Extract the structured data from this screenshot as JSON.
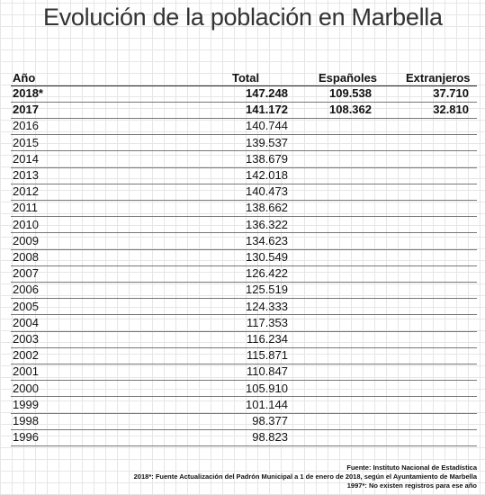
{
  "title": "Evolución de la población en Marbella",
  "table": {
    "header": [
      "Año",
      "Total",
      "Españoles",
      "Extranjeros"
    ],
    "rows": [
      [
        "2018*",
        "147.248",
        "109.538",
        "37.710"
      ],
      [
        "2017",
        "141.172",
        "108.362",
        "32.810"
      ],
      [
        "2016",
        "140.744"
      ],
      [
        "2015",
        "139.537"
      ],
      [
        "2014",
        "138.679"
      ],
      [
        "2013",
        "142.018"
      ],
      [
        "2012",
        "140.473"
      ],
      [
        "2011",
        "138.662"
      ],
      [
        "2010",
        "136.322"
      ],
      [
        "2009",
        "134.623"
      ],
      [
        "2008",
        "130.549"
      ],
      [
        "2007",
        "126.422"
      ],
      [
        "2006",
        "125.519"
      ],
      [
        "2005",
        "124.333"
      ],
      [
        "2004",
        "117.353"
      ],
      [
        "2003",
        "116.234"
      ],
      [
        "2002",
        "115.871"
      ],
      [
        "2001",
        "110.847"
      ],
      [
        "2000",
        "105.910"
      ],
      [
        "1999",
        "101.144"
      ],
      [
        "1998",
        "98.377"
      ],
      [
        "1996",
        "98.823"
      ]
    ]
  },
  "footer": [
    "Fuente: Instituto Nacional de Estadística",
    "2018*: Fuente Actualización del Padrón Municipal a 1 de enero de 2018, según el Ayuntamiento de Marbella",
    "1997*: No existen registros para ese año"
  ]
}
